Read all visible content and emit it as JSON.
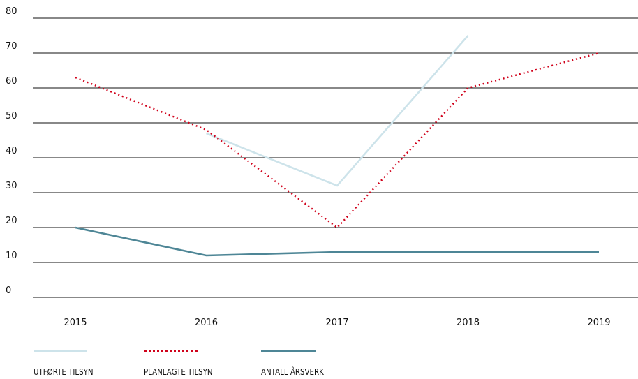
{
  "chart_data": {
    "type": "line",
    "categories": [
      "2015",
      "2016",
      "2017",
      "2018",
      "2019"
    ],
    "y_ticks": [
      "0",
      "10",
      "20",
      "30",
      "40",
      "50",
      "60",
      "70",
      "80"
    ],
    "ylim": [
      0,
      80
    ],
    "grid": true,
    "legend_placement": "bottom-left",
    "series": [
      {
        "name": "UTFØRTE TILSYN",
        "values": [
          null,
          47,
          32,
          75,
          null
        ],
        "color": "#cde3ea",
        "style": "solid"
      },
      {
        "name": "PLANLAGTE TILSYN",
        "values": [
          63,
          48,
          20,
          60,
          70
        ],
        "color": "#d0021b",
        "style": "dotted"
      },
      {
        "name": "ANTALL ÅRSVERK",
        "values": [
          20,
          12,
          13,
          13,
          13
        ],
        "color": "#4e8696",
        "style": "solid"
      }
    ]
  }
}
